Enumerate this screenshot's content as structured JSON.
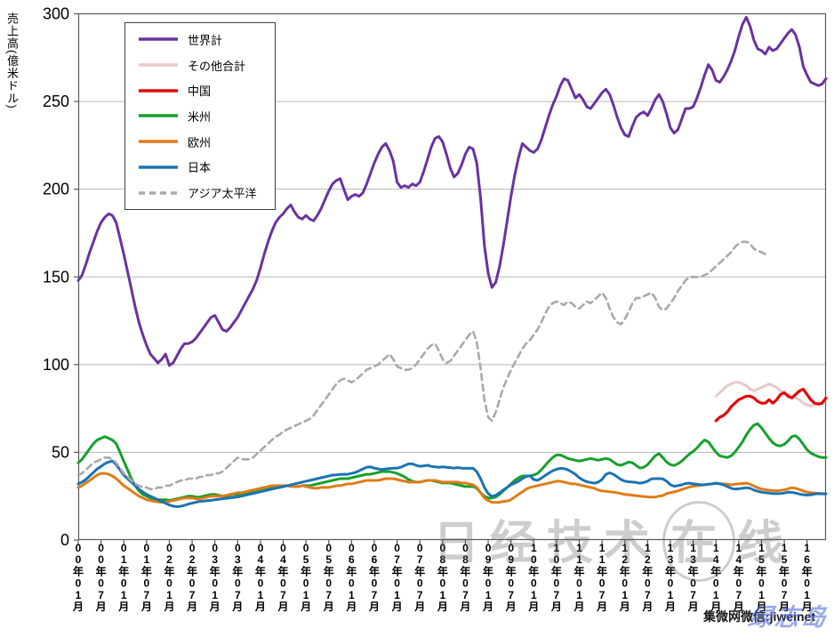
{
  "watermarks": {
    "nikkei": "日经技术在线",
    "jiweinet": "集微网微信:jiweinet",
    "blue_script": "绿志岛"
  },
  "chart_data": {
    "type": "line",
    "title": "",
    "ylabel": "売上高(億米ドル)",
    "ylim": [
      0,
      300
    ],
    "ytick_step": 50,
    "grid": "horizontal",
    "legend_position": "top-left-box",
    "x_months_total": 198,
    "x_start_label": "2000-01",
    "x_tick_every": 6,
    "x_tick_labels": [
      "00年01月",
      "00年07月",
      "01年01月",
      "01年07月",
      "02年01月",
      "02年07月",
      "03年01月",
      "03年07月",
      "04年01月",
      "04年07月",
      "05年01月",
      "05年07月",
      "06年01月",
      "06年07月",
      "07年01月",
      "07年07月",
      "08年01月",
      "08年07月",
      "09年01月",
      "09年07月",
      "10年01月",
      "10年07月",
      "11年01月",
      "11年07月",
      "12年01月",
      "12年07月",
      "13年01月",
      "13年07月",
      "14年01月",
      "14年07月",
      "15年01月",
      "15年07月",
      "16年01月"
    ],
    "series": [
      {
        "key": "world",
        "name": "世界計",
        "color": "#6a329f",
        "width": 3,
        "dash": null,
        "start": 0,
        "values": [
          148,
          151,
          157,
          164,
          170,
          176,
          181,
          184,
          186,
          185,
          181,
          172,
          163,
          153,
          143,
          133,
          124,
          117,
          111,
          106,
          103.5,
          101,
          103,
          106,
          99.5,
          101,
          105,
          109,
          112,
          112,
          113,
          115,
          118,
          121,
          124,
          127,
          128,
          124,
          120,
          119,
          121,
          124,
          127,
          131,
          135,
          139,
          143,
          148,
          155,
          163,
          170,
          176,
          181,
          184,
          186,
          189,
          191,
          187,
          184,
          183,
          185,
          183,
          182,
          185,
          189,
          194,
          199,
          203,
          205,
          206,
          200,
          194,
          196,
          197,
          196,
          198,
          203,
          209,
          215,
          220,
          224,
          226,
          222,
          216,
          204,
          201,
          202,
          201,
          203,
          202,
          204,
          210,
          217,
          224,
          229,
          230,
          227,
          220,
          212,
          207,
          209,
          214,
          220,
          224,
          223,
          215,
          195,
          168,
          152,
          144,
          147,
          156,
          168,
          182,
          196,
          208,
          218,
          226,
          224,
          222,
          221,
          223,
          228,
          235,
          242,
          248,
          253,
          259,
          263,
          262,
          257,
          252,
          254,
          251,
          247,
          246,
          249,
          252,
          255,
          257,
          254,
          248,
          241,
          235,
          231,
          230,
          236,
          241,
          243,
          244,
          242,
          246,
          251,
          254,
          250,
          243,
          235,
          232,
          234,
          240,
          246,
          246,
          247,
          252,
          258,
          265,
          271,
          268,
          262,
          261,
          264,
          268,
          273,
          279,
          287,
          294,
          298,
          293,
          285,
          280,
          279,
          277,
          281,
          279,
          280,
          283,
          286,
          289,
          291,
          288,
          281,
          270,
          265,
          261,
          260,
          259,
          260,
          263
        ]
      },
      {
        "key": "other_total",
        "name": "その他合計",
        "color": "#e7caca",
        "width": 3,
        "dash": null,
        "start": 168,
        "values": [
          82,
          84,
          86,
          88,
          89,
          90,
          90,
          89,
          88,
          86,
          85,
          86,
          87,
          88,
          89,
          88,
          87,
          85,
          84,
          83,
          82,
          81,
          80,
          78,
          77,
          76.5,
          77,
          78,
          79,
          80
        ]
      },
      {
        "key": "china",
        "name": "中国",
        "color": "#e00b0b",
        "width": 3.2,
        "dash": null,
        "start": 168,
        "values": [
          68,
          70,
          71,
          73,
          76,
          78,
          80,
          81,
          82,
          82,
          81,
          79,
          78,
          78,
          80,
          78,
          80,
          83,
          84,
          82,
          81,
          83,
          85,
          86,
          83,
          80,
          78,
          77.5,
          78,
          81
        ]
      },
      {
        "key": "americas",
        "name": "米州",
        "color": "#16a02c",
        "width": 3,
        "dash": null,
        "start": 0,
        "values": [
          44,
          46,
          49,
          52,
          55,
          57,
          58,
          59,
          58,
          57,
          55,
          50,
          45,
          40,
          35,
          31,
          28,
          26,
          25,
          24,
          23.5,
          23,
          23,
          23,
          22.5,
          23,
          23.5,
          24,
          24.5,
          25,
          25,
          24.5,
          24.5,
          25,
          25.5,
          26,
          26,
          25.5,
          25,
          25,
          25.5,
          26,
          26,
          26.5,
          27,
          27,
          27,
          27.5,
          28,
          28.5,
          29,
          29.5,
          30,
          30,
          30.5,
          31,
          31,
          30.5,
          30.5,
          31,
          31,
          31,
          31.5,
          32,
          32.5,
          33,
          33.5,
          34,
          34.5,
          35,
          35,
          35,
          35.5,
          36,
          36.5,
          37,
          37.5,
          37.5,
          38,
          38.5,
          39,
          39,
          39,
          38.5,
          38,
          37,
          36,
          34.5,
          33.5,
          33,
          33,
          33.5,
          34,
          34,
          33.5,
          33,
          32.5,
          32.5,
          32.5,
          32,
          31.5,
          31,
          30.5,
          30.5,
          30.5,
          29.5,
          27,
          25,
          24,
          24,
          24.5,
          26,
          28,
          30,
          32,
          34,
          35.5,
          36.5,
          36.5,
          36.5,
          37,
          38,
          40,
          42.5,
          45,
          47,
          48.5,
          48.5,
          47.5,
          46.5,
          46,
          45.5,
          45,
          45.5,
          46,
          46.5,
          46,
          45.5,
          46,
          46.5,
          46,
          44.5,
          43,
          42.6,
          43.5,
          44.5,
          44,
          42.5,
          41,
          41.5,
          43,
          45.5,
          48,
          49.3,
          47,
          44.5,
          43,
          42.5,
          43.5,
          45,
          47,
          49,
          50.5,
          52.5,
          55,
          57,
          56,
          53,
          50,
          48,
          47.5,
          47,
          48,
          50,
          53,
          56,
          60,
          63,
          65.5,
          66.3,
          64,
          61,
          58,
          55.5,
          54,
          53.6,
          54.5,
          56.5,
          59,
          59.5,
          57.5,
          54.5,
          51.5,
          49.5,
          48.5,
          47.5,
          47,
          47
        ]
      },
      {
        "key": "europe",
        "name": "欧州",
        "color": "#e07b17",
        "width": 3,
        "dash": null,
        "start": 0,
        "values": [
          30,
          31,
          32.5,
          34,
          35.5,
          37,
          38,
          38,
          37.5,
          36.5,
          35,
          33,
          31,
          29.5,
          28,
          26.5,
          25,
          24,
          23,
          22.5,
          22,
          21.8,
          21.5,
          21.5,
          22,
          22.5,
          23,
          23.5,
          24,
          24,
          24,
          23.5,
          23.5,
          24,
          24.5,
          25,
          25,
          25,
          25,
          25.5,
          26,
          26.5,
          27,
          27,
          27.5,
          28,
          28.5,
          29,
          29.5,
          30,
          30.5,
          31,
          31,
          31,
          31,
          31,
          30.5,
          30.5,
          30.5,
          31,
          30.5,
          30,
          29.5,
          29.5,
          30,
          30,
          30,
          30.5,
          31,
          31,
          31.5,
          32,
          32,
          32.5,
          33,
          33.5,
          34,
          34,
          34,
          34,
          34.5,
          35,
          35,
          35,
          34.5,
          34,
          33.5,
          33,
          33,
          33,
          33,
          33.5,
          34,
          34,
          34,
          33.5,
          33,
          33,
          33,
          33,
          33,
          32.5,
          32.5,
          32,
          31.5,
          30,
          27,
          24,
          22.5,
          21.5,
          21.4,
          21.5,
          22,
          22.2,
          23,
          24.5,
          26,
          27.5,
          29,
          30,
          30.5,
          31,
          31.5,
          32,
          32.5,
          33,
          33.5,
          33.5,
          33,
          32.5,
          32,
          32,
          31.5,
          31,
          30.5,
          30,
          29.5,
          28.5,
          28,
          27.8,
          27.5,
          27.3,
          27,
          26.5,
          26,
          25.8,
          25.5,
          25.3,
          25,
          24.8,
          24.6,
          24.5,
          24.5,
          25,
          25.3,
          26.5,
          27,
          27.5,
          28,
          28.8,
          29.5,
          30.2,
          30.7,
          31,
          31.2,
          31.5,
          31.8,
          32,
          32.4,
          32.2,
          32,
          31.8,
          31.5,
          31.8,
          32,
          32.2,
          32.4,
          31.8,
          30.8,
          29.8,
          29,
          28.7,
          28.4,
          28.2,
          28.1,
          28.3,
          28.6,
          29.2,
          29.8,
          29.5,
          28.8,
          28,
          27.3,
          27,
          26.8,
          26.6,
          26.5,
          26.4
        ]
      },
      {
        "key": "japan",
        "name": "日本",
        "color": "#1b73b2",
        "width": 3,
        "dash": null,
        "start": 0,
        "values": [
          32,
          33,
          34.5,
          36.5,
          38.5,
          40.5,
          42,
          43.5,
          44.5,
          45,
          43,
          40,
          37,
          35,
          33,
          31,
          29,
          27.5,
          26,
          25,
          24,
          23,
          22,
          21,
          20,
          19.3,
          19,
          19.2,
          19.8,
          20.5,
          21,
          21.5,
          22,
          22.2,
          22.4,
          22.6,
          23,
          23.2,
          23.5,
          23.8,
          24,
          24.3,
          24.6,
          25,
          25.5,
          26,
          26.5,
          27,
          27.5,
          28,
          28.5,
          29,
          29.5,
          30,
          30.5,
          31,
          31.5,
          32,
          32.5,
          33,
          33.5,
          34,
          34.5,
          35,
          35.5,
          36,
          36.5,
          37,
          37.2,
          37.4,
          37.5,
          37.5,
          38,
          38.5,
          39.5,
          40.5,
          41.5,
          41.7,
          41,
          40.5,
          40.2,
          40.5,
          40.8,
          41,
          41,
          41.5,
          42.5,
          43.4,
          43.4,
          42.6,
          42,
          42.3,
          42.6,
          42,
          41.7,
          41.5,
          41.7,
          41.5,
          41.3,
          41,
          41.3,
          41,
          40.9,
          40.9,
          40.9,
          39,
          35,
          30,
          26.5,
          24.8,
          25.5,
          27,
          28.5,
          30,
          31.5,
          32.4,
          33.5,
          35,
          36.2,
          36.6,
          34.5,
          34.1,
          35.2,
          36.8,
          38.2,
          39.5,
          40.3,
          40.9,
          40.7,
          40,
          38.8,
          37.5,
          35.5,
          34.2,
          33.2,
          32.8,
          32.4,
          33,
          34.5,
          37.5,
          38.3,
          37.5,
          36,
          34.5,
          33.5,
          33.2,
          33,
          32.8,
          32.4,
          32.8,
          33.5,
          34.9,
          35,
          35,
          34.9,
          33.5,
          31.5,
          30.7,
          31,
          31.5,
          32.2,
          32.4,
          32,
          31.8,
          31.5,
          31.5,
          31.8,
          32,
          32.4,
          32,
          31.5,
          30.5,
          29.5,
          29,
          29.2,
          29.5,
          29.8,
          29.5,
          28.5,
          27.8,
          27.3,
          27,
          26.8,
          26.5,
          26.4,
          26.5,
          26.8,
          27.3,
          27.2,
          26.8,
          26.2,
          25.8,
          25.6,
          25.8,
          26.2,
          26.4,
          26.3,
          26.3
        ]
      },
      {
        "key": "asia_pacific",
        "name": "アジア太平洋",
        "color": "#a9a9a9",
        "width": 2.6,
        "dash": "7,5",
        "start": 0,
        "values": [
          37,
          38,
          40,
          42,
          44,
          45,
          46,
          47,
          47,
          46,
          44,
          41,
          38,
          36,
          34,
          32,
          31,
          30,
          30,
          29,
          29,
          30,
          30,
          31,
          31,
          32,
          33,
          34,
          34,
          35,
          35,
          35,
          36,
          36,
          37,
          37,
          38,
          38,
          39,
          41,
          43,
          45,
          47,
          46,
          46,
          46,
          47,
          49,
          51,
          53,
          55,
          57,
          59,
          60,
          62,
          63,
          64,
          65,
          66,
          67,
          68,
          69,
          71,
          74,
          77,
          80,
          83,
          86,
          89,
          91,
          92,
          91,
          90,
          91,
          93,
          95,
          97,
          98,
          99,
          100,
          102,
          104,
          106,
          103,
          99,
          98,
          97,
          97,
          98,
          100,
          103,
          106,
          109,
          111,
          112,
          108,
          103,
          101,
          102,
          105,
          108,
          111,
          114,
          117,
          119,
          113,
          98,
          80,
          70,
          68,
          73,
          80,
          87,
          92,
          97,
          101,
          105,
          109,
          112,
          114,
          117,
          120,
          124,
          129,
          133,
          135,
          136,
          135,
          134,
          136,
          135,
          133,
          132,
          134,
          136,
          135,
          137,
          139,
          141,
          138,
          132,
          127,
          124,
          123,
          126,
          130,
          135,
          138,
          138,
          139,
          140,
          141,
          138,
          133,
          131,
          132,
          135,
          138,
          142,
          145,
          148,
          150,
          150,
          150,
          150,
          151,
          152,
          154,
          156,
          158,
          160,
          162,
          164,
          167,
          169,
          170,
          170,
          169,
          166,
          165,
          164,
          163
        ]
      }
    ]
  }
}
